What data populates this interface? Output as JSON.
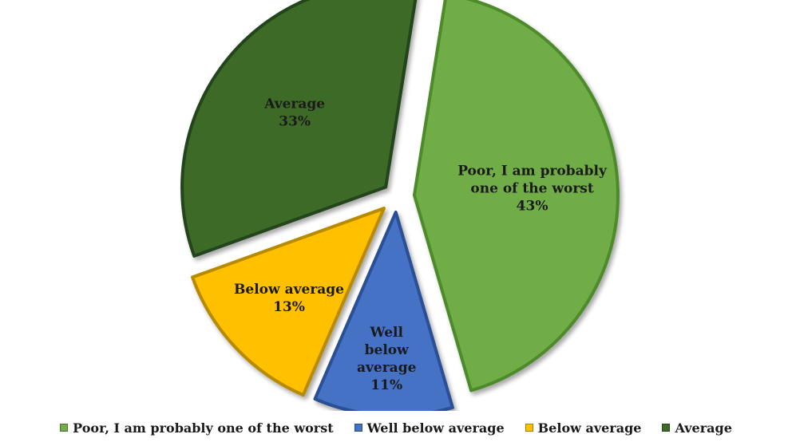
{
  "chart_data": {
    "type": "pie",
    "title": "",
    "exploded": true,
    "slices": [
      {
        "label": "Poor, I am probably one of the worst",
        "value": 43,
        "value_label": "43%",
        "color": "#70ad47",
        "edge_color": "#4e8a2c"
      },
      {
        "label": "Well below average",
        "value": 11,
        "value_label": "11%",
        "color": "#4472c4",
        "edge_color": "#2b4f94"
      },
      {
        "label": "Below average",
        "value": 13,
        "value_label": "13%",
        "color": "#ffc000",
        "edge_color": "#b88a00"
      },
      {
        "label": "Average",
        "value": 33,
        "value_label": "33%",
        "color": "#3d6b27",
        "edge_color": "#24451a"
      }
    ],
    "slice_text": [
      [
        "Poor, I am probably",
        "one of the worst",
        "43%"
      ],
      [
        "Well",
        "below",
        "average",
        "11%"
      ],
      [
        "Below average",
        "13%"
      ],
      [
        "Average",
        "33%"
      ]
    ],
    "legend": {
      "position": "bottom",
      "entries": [
        "Poor, I am probably one of the worst",
        "Well below average",
        "Below average",
        "Average"
      ]
    }
  }
}
